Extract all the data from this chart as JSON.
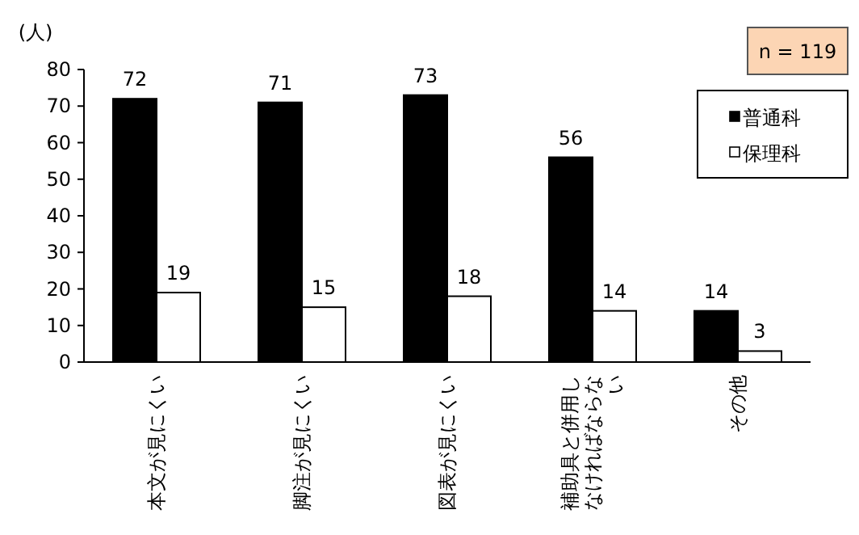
{
  "chart_data": {
    "type": "bar",
    "ylabel": "(人)",
    "categories": [
      "本文が見にくい",
      "脚注が見にくい",
      "図表が見にくい",
      "補助具と併用しなければならない",
      "その他"
    ],
    "series": [
      {
        "name": "普通科",
        "color": "#000000",
        "values": [
          72,
          71,
          73,
          56,
          14
        ]
      },
      {
        "name": "保理科",
        "color": "#ffffff",
        "values": [
          19,
          15,
          18,
          14,
          3
        ]
      }
    ],
    "ylim": [
      0,
      80
    ],
    "yticks": [
      0,
      10,
      20,
      30,
      40,
      50,
      60,
      70,
      80
    ],
    "data_labels": true,
    "legend": "right",
    "grid": false,
    "annotations": [
      "n = 119"
    ]
  }
}
